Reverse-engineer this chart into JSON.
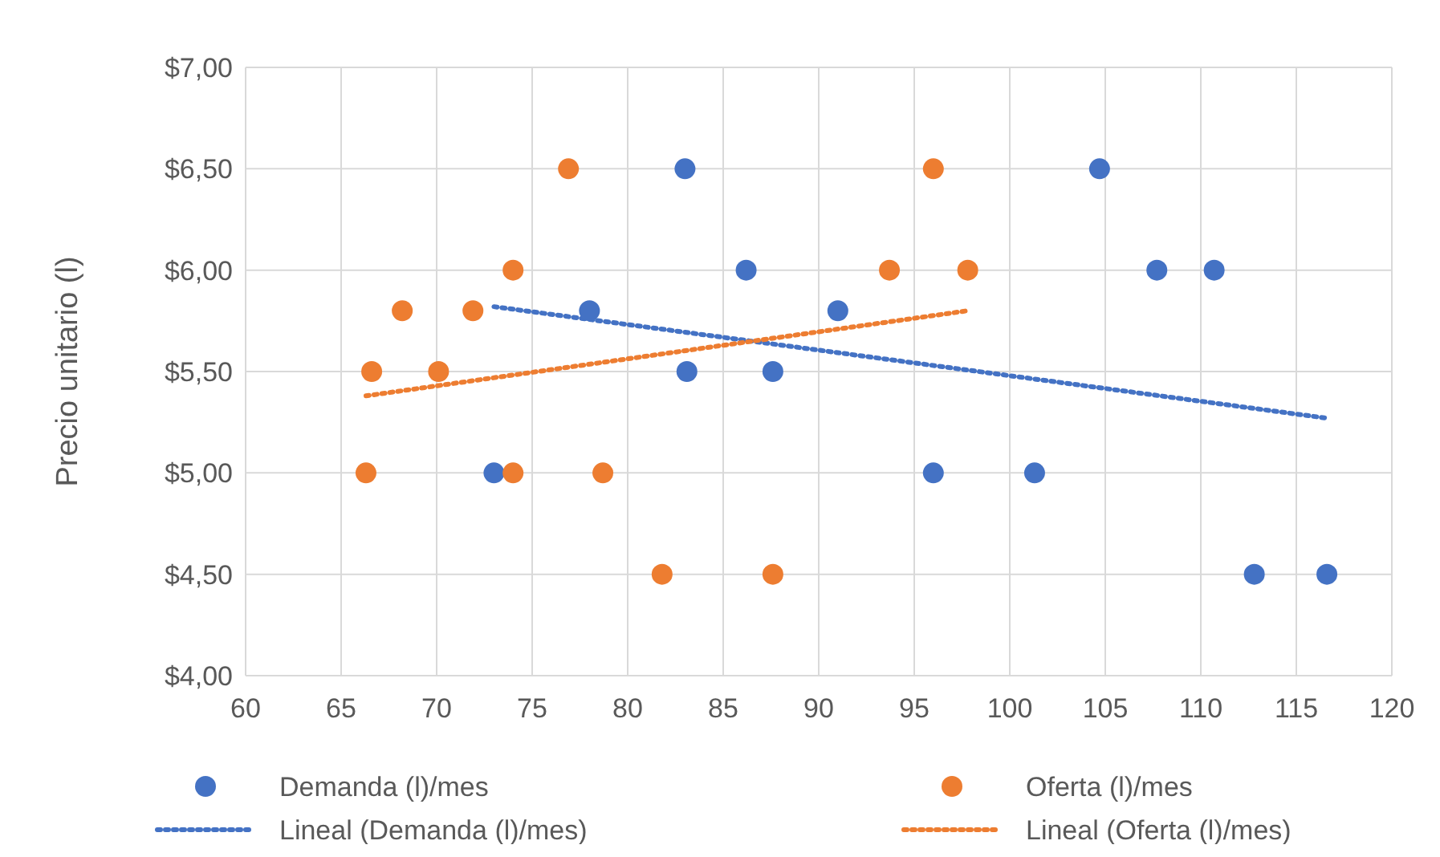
{
  "chart_data": {
    "type": "scatter",
    "ylabel": "Precio unitario (l)",
    "xlim": [
      60,
      120
    ],
    "xticks": [
      60,
      65,
      70,
      75,
      80,
      85,
      90,
      95,
      100,
      105,
      110,
      115,
      120
    ],
    "ylim": [
      4,
      7
    ],
    "yticks": [
      {
        "value": 4,
        "label": "$4,00"
      },
      {
        "value": 4.5,
        "label": "$4,50"
      },
      {
        "value": 5,
        "label": "$5,00"
      },
      {
        "value": 5.5,
        "label": "$5,50"
      },
      {
        "value": 6,
        "label": "$6,00"
      },
      {
        "value": 6.5,
        "label": "$6,50"
      },
      {
        "value": 7,
        "label": "$7,00"
      }
    ],
    "grid": true,
    "legend": "bottom",
    "marker": "circle",
    "series": [
      {
        "name": "Demanda (l)/mes",
        "color": "#4472c4",
        "x": [
          73,
          78,
          83,
          83.1,
          86.2,
          87.6,
          91,
          96,
          101.3,
          104.7,
          107.7,
          110.7,
          112.8,
          116.6
        ],
        "values": [
          5,
          5.8,
          6.5,
          5.5,
          6,
          5.5,
          5.8,
          5,
          5,
          6.5,
          6,
          6,
          4.5,
          4.5
        ]
      },
      {
        "name": "Oferta (l)/mes",
        "color": "#ed7d31",
        "x": [
          66.3,
          66.6,
          68.2,
          70.1,
          71.9,
          74,
          74,
          76.9,
          78.7,
          81.8,
          87.6,
          93.7,
          96,
          97.8
        ],
        "values": [
          5,
          5.5,
          5.8,
          5.5,
          5.8,
          6,
          5,
          6.5,
          5,
          4.5,
          4.5,
          6,
          6.5,
          6
        ]
      },
      {
        "name": "Lineal (Demanda (l)/mes)",
        "type": "line",
        "line_style": "dotted",
        "marker": "none",
        "color": "#4472c4",
        "x": [
          73,
          116.6
        ],
        "values": [
          5.82,
          5.27
        ]
      },
      {
        "name": "Lineal (Oferta (l)/mes)",
        "type": "line",
        "line_style": "dotted",
        "marker": "none",
        "color": "#ed7d31",
        "x": [
          66.3,
          97.8
        ],
        "values": [
          5.38,
          5.8
        ]
      }
    ]
  }
}
